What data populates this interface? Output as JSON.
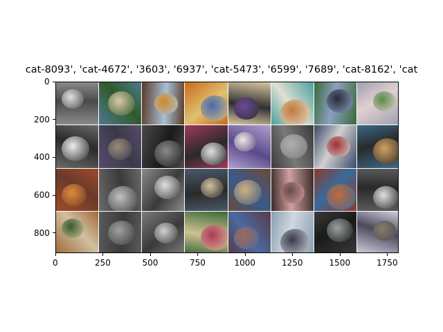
{
  "figure": {
    "title": "cat-8093', 'cat-4672', '3603', '6937', 'cat-5473', '6599', '7689', 'cat-8162', 'cat",
    "x_ticks": [
      "0",
      "250",
      "500",
      "750",
      "1000",
      "1250",
      "1500",
      "1750"
    ],
    "y_ticks": [
      "0",
      "200",
      "400",
      "600",
      "800"
    ],
    "x_tick_values": [
      0,
      250,
      500,
      750,
      1000,
      1250,
      1500,
      1750
    ],
    "y_tick_values": [
      0,
      200,
      400,
      600,
      800
    ],
    "image_extent": {
      "x_max": 1810,
      "y_max": 906
    },
    "grid": {
      "rows": 4,
      "cols": 8
    },
    "tiles": [
      {
        "subject": "dog",
        "palette": [
          "#8a8a8a",
          "#e0e0e0",
          "#4a4a4a"
        ]
      },
      {
        "subject": "dog",
        "palette": [
          "#4d7a91",
          "#d9c8a8",
          "#2f5a2a"
        ]
      },
      {
        "subject": "dog",
        "palette": [
          "#5a3a24",
          "#d08a2a",
          "#a8c0d8"
        ]
      },
      {
        "subject": "cat",
        "palette": [
          "#c86a1a",
          "#4a6ab0",
          "#e0c070"
        ]
      },
      {
        "subject": "dog",
        "palette": [
          "#d8c8a0",
          "#6a4a9a",
          "#303030"
        ]
      },
      {
        "subject": "dog",
        "palette": [
          "#4aa0a0",
          "#c07a3a",
          "#e0e0d0"
        ]
      },
      {
        "subject": "dog",
        "palette": [
          "#3a6a3a",
          "#2a2a3a",
          "#8aa0c0"
        ]
      },
      {
        "subject": "dog",
        "palette": [
          "#a0a0b0",
          "#5a8a4a",
          "#e0d0d0"
        ]
      },
      {
        "subject": "dog",
        "palette": [
          "#6a6a6a",
          "#ececec",
          "#2a2a2a"
        ]
      },
      {
        "subject": "cat",
        "palette": [
          "#5a4a6a",
          "#9a8a7a",
          "#3a3a4a"
        ]
      },
      {
        "subject": "cat",
        "palette": [
          "#4a4a4a",
          "#8a8a8a",
          "#1a1a1a"
        ]
      },
      {
        "subject": "cat",
        "palette": [
          "#a03a5a",
          "#e0e0e0",
          "#2a2a2a"
        ]
      },
      {
        "subject": "cat",
        "palette": [
          "#b0a0d0",
          "#f0e8e0",
          "#5a4a8a"
        ]
      },
      {
        "subject": "cat",
        "palette": [
          "#3a3a3a",
          "#b0b0b0",
          "#7a7a7a"
        ]
      },
      {
        "subject": "dog",
        "palette": [
          "#3a4a6a",
          "#a03030",
          "#d0d0d0"
        ]
      },
      {
        "subject": "dog",
        "palette": [
          "#3a6a8a",
          "#d0a060",
          "#2a2a2a"
        ]
      },
      {
        "subject": "cat",
        "palette": [
          "#a04a2a",
          "#e08a3a",
          "#6a3a2a"
        ]
      },
      {
        "subject": "cat",
        "palette": [
          "#6a6a6a",
          "#c0c0c0",
          "#3a3a3a"
        ]
      },
      {
        "subject": "dog",
        "palette": [
          "#8a8a8a",
          "#e0e0e0",
          "#3a3a3a"
        ]
      },
      {
        "subject": "cat",
        "palette": [
          "#4a5a6a",
          "#d0c0a0",
          "#2a2a2a"
        ]
      },
      {
        "subject": "cat",
        "palette": [
          "#6a4a3a",
          "#d0b080",
          "#3a5a8a"
        ]
      },
      {
        "subject": "dog",
        "palette": [
          "#3a2a2a",
          "#6a4a4a",
          "#d0a0a0"
        ]
      },
      {
        "subject": "dog",
        "palette": [
          "#8a3a2a",
          "#c06a3a",
          "#3a6a9a"
        ]
      },
      {
        "subject": "cat",
        "palette": [
          "#5a5a5a",
          "#e0e0e0",
          "#2a2a2a"
        ]
      },
      {
        "subject": "dog",
        "palette": [
          "#a06a3a",
          "#3a5a2a",
          "#d0c0a0"
        ]
      },
      {
        "subject": "cat",
        "palette": [
          "#5a5a5a",
          "#a0a0a0",
          "#3a3a3a"
        ]
      },
      {
        "subject": "cat",
        "palette": [
          "#7a7a7a",
          "#d0d0d0",
          "#3a3a3a"
        ]
      },
      {
        "subject": "dog",
        "palette": [
          "#3a6a3a",
          "#b03a5a",
          "#d0c090"
        ]
      },
      {
        "subject": "dog",
        "palette": [
          "#5a3a4a",
          "#a06a5a",
          "#4a6aa0"
        ]
      },
      {
        "subject": "dog",
        "palette": [
          "#8aa0b0",
          "#3a3a4a",
          "#d0d8e0"
        ]
      },
      {
        "subject": "cat",
        "palette": [
          "#3a3a3a",
          "#9aa0a0",
          "#1a1a1a"
        ]
      },
      {
        "subject": "cat",
        "palette": [
          "#d0d0e0",
          "#8a7a6a",
          "#4a4a5a"
        ]
      }
    ]
  }
}
